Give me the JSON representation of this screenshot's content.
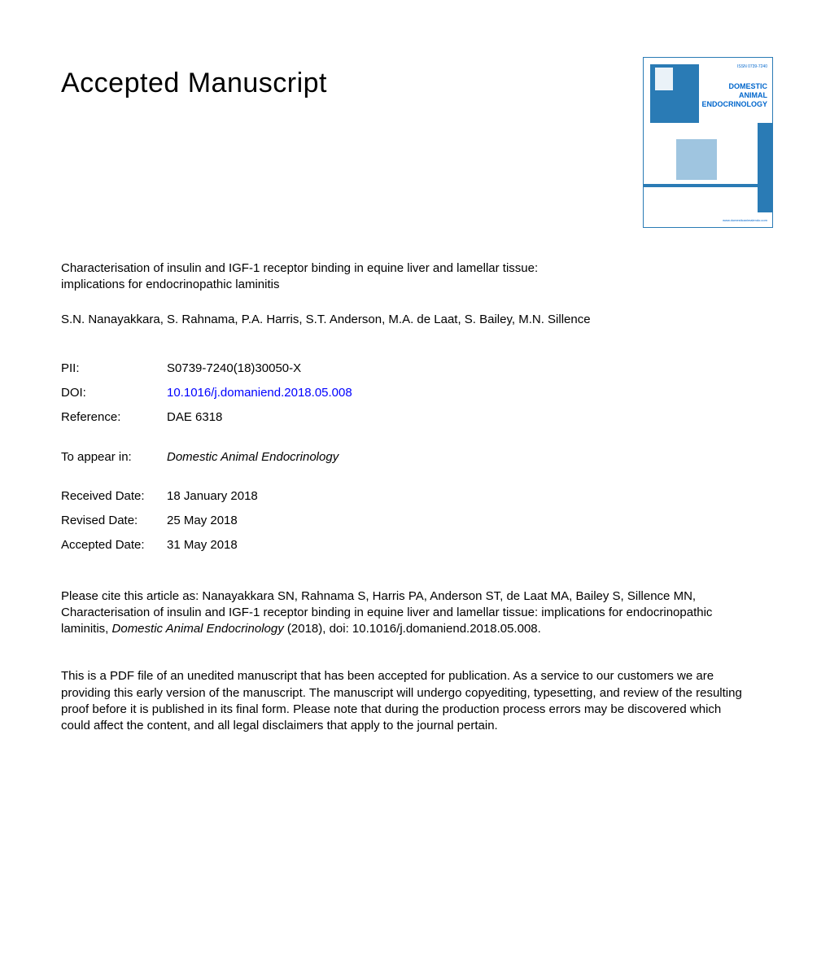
{
  "heading": "Accepted Manuscript",
  "title": "Characterisation of insulin and IGF-1 receptor binding in equine liver and lamellar tissue: implications for endocrinopathic laminitis",
  "authors": "S.N. Nanayakkara, S. Rahnama, P.A. Harris, S.T. Anderson, M.A. de Laat, S. Bailey, M.N. Sillence",
  "meta": {
    "pii_label": "PII:",
    "pii_value": "S0739-7240(18)30050-X",
    "doi_label": "DOI:",
    "doi_value": "10.1016/j.domaniend.2018.05.008",
    "ref_label": "Reference:",
    "ref_value": "DAE 6318"
  },
  "appear": {
    "label": "To appear in:",
    "journal": "Domestic Animal Endocrinology"
  },
  "dates": {
    "received_label": "Received Date:",
    "received_value": "18 January 2018",
    "revised_label": "Revised Date:",
    "revised_value": "25 May 2018",
    "accepted_label": "Accepted Date:",
    "accepted_value": "31 May 2018"
  },
  "citation": {
    "prefix": "Please cite this article as: Nanayakkara SN, Rahnama S, Harris PA, Anderson ST, de Laat MA, Bailey S, Sillence MN, Characterisation of insulin and IGF-1 receptor binding in equine liver and lamellar tissue: implications for endocrinopathic laminitis, ",
    "journal": "Domestic Animal Endocrinology",
    "suffix": " (2018), doi: 10.1016/j.domaniend.2018.05.008."
  },
  "disclaimer": "This is a PDF file of an unedited manuscript that has been accepted for publication. As a service to our customers we are providing this early version of the manuscript. The manuscript will undergo copyediting, typesetting, and review of the resulting proof before it is published in its final form. Please note that during the production process errors may be discovered which could affect the content, and all legal disclaimers that apply to the journal pertain.",
  "cover": {
    "line1": "DOMESTIC",
    "line2": "ANIMAL",
    "line3": "ENDOCRINOLOGY",
    "issn": "ISSN 0739-7240",
    "footer": "www.domesticanimalendo.com",
    "colors": {
      "primary": "#2a7bb5",
      "light": "#9fc5e0",
      "link": "#0066cc"
    }
  }
}
